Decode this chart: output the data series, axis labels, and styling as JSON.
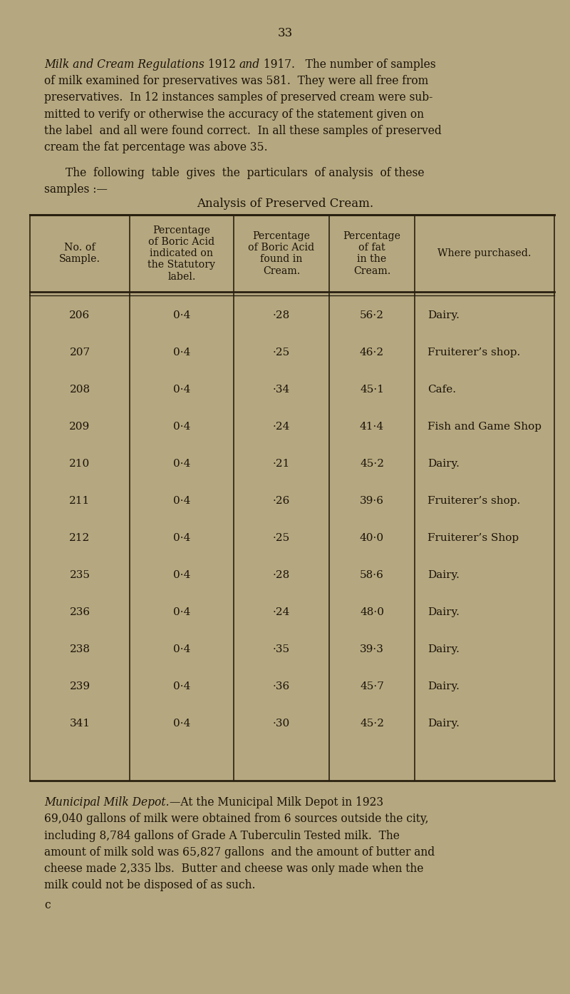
{
  "bg_color": "#b5a880",
  "text_color": "#1a1208",
  "table_line_color": "#2a2010",
  "page_number": "33",
  "col_headers": [
    "No. of\nSample.",
    "Percentage\nof Boric Acid\nindicated on\nthe Statutory\nlabel.",
    "Percentage\nof Boric Acid\nfound in\nCream.",
    "Percentage\nof fat\nin the\nCream.",
    "Where purchased."
  ],
  "table_data": [
    [
      "206",
      "0·4",
      "·28",
      "56·2",
      "Dairy."
    ],
    [
      "207",
      "0·4",
      "·25",
      "46·2",
      "Fruiterer’s shop."
    ],
    [
      "208",
      "0·4",
      "·34",
      "45·1",
      "Cafe."
    ],
    [
      "209",
      "0·4",
      "·24",
      "41·4",
      "Fish and Game Shop"
    ],
    [
      "210",
      "0·4",
      "·21",
      "45·2",
      "Dairy."
    ],
    [
      "211",
      "0·4",
      "·26",
      "39·6",
      "Fruiterer’s shop."
    ],
    [
      "212",
      "0·4",
      "·25",
      "40·0",
      "Fruiterer’s Shop"
    ],
    [
      "235",
      "0·4",
      "·28",
      "58·6",
      "Dairy."
    ],
    [
      "236",
      "0·4",
      "·24",
      "48·0",
      "Dairy."
    ],
    [
      "238",
      "0·4",
      "·35",
      "39·3",
      "Dairy."
    ],
    [
      "239",
      "0·4",
      "·36",
      "45·7",
      "Dairy."
    ],
    [
      "341",
      "0·4",
      "·30",
      "45·2",
      "Dairy."
    ]
  ],
  "p1_italic1": "Milk and Cream Regulations",
  "p1_normal1": " 1912 ",
  "p1_italic2": "and",
  "p1_normal2": " 1917.   The number of samples",
  "p1_rest": [
    "of milk examined for preservatives was 581.  They were all free from",
    "preservatives.  In 12 instances samples of preserved cream were sub-",
    "mitted to verify or otherwise the accuracy of the statement given on",
    "the label  and all were found correct.  In all these samples of preserved",
    "cream the fat percentage was above 35."
  ],
  "p2_line1": "The  following  table  gives  the  particulars  of analysis  of these",
  "p2_line2": "samples :—",
  "table_title": "Analysis of Preserved Cream.",
  "p3_italic": "Municipal Milk Depot.",
  "p3_dash": "—At the Municipal Milk Depot in 1923",
  "p3_rest": [
    "69,040 gallons of milk were obtained from 6 sources outside the city,",
    "including 8,784 gallons of Grade A Tuberculin Tested milk.  The",
    "amount of milk sold was 65,827 gallons  and the amount of butter and",
    "cheese made 2,335 lbs.  Butter and cheese was only made when the",
    "milk could not be disposed of as such."
  ],
  "footer": "c",
  "lm": 0.62,
  "rm": 7.72,
  "body_fs": 11.2,
  "table_fs": 11.0,
  "header_fs": 10.2,
  "lh": 0.232,
  "table_title_fs": 12.0
}
